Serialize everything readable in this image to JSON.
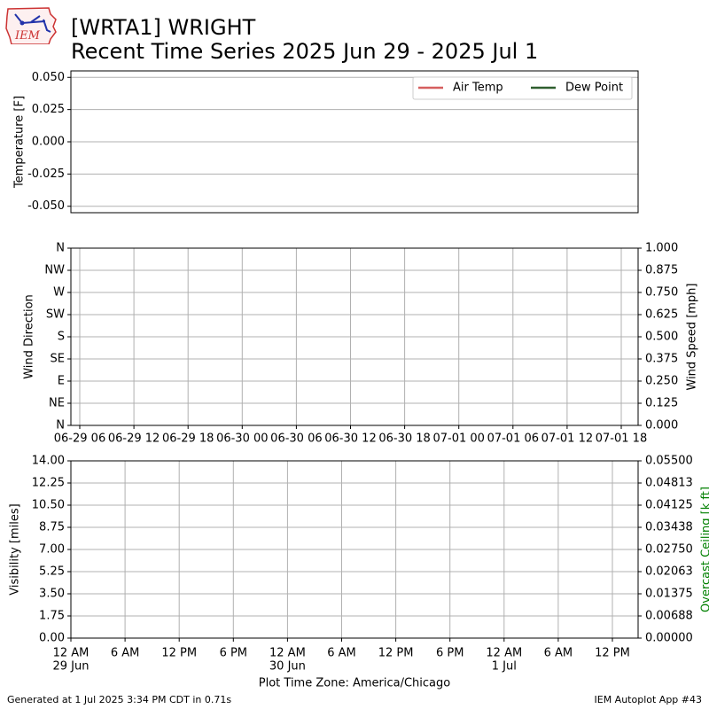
{
  "header": {
    "title_line1": "[WRTA1] WRIGHT",
    "title_line2": "Recent Time Series 2025 Jun 29 - 2025 Jul 1",
    "logo_text": "IEM"
  },
  "footer": {
    "generated": "Generated at 1 Jul 2025 3:34 PM CDT in 0.71s",
    "app": "IEM Autoplot App #43"
  },
  "colors": {
    "air_temp": "#d65f5f",
    "dew_point": "#2f5f2f",
    "ceiling_label": "#008000",
    "grid": "#b0b0b0"
  },
  "chart_data": [
    {
      "type": "line",
      "ylabel": "Temperature [F]",
      "ylim": [
        -0.055,
        0.055
      ],
      "yticks": [
        "0.050",
        "0.025",
        "0.000",
        "-0.025",
        "-0.050"
      ],
      "ytick_values": [
        0.05,
        0.025,
        0.0,
        -0.025,
        -0.05
      ],
      "grid": true,
      "legend": "top-right",
      "series": [
        {
          "name": "Air Temp",
          "values": []
        },
        {
          "name": "Dew Point",
          "values": []
        }
      ]
    },
    {
      "type": "scatter",
      "ylabel": "Wind Direction",
      "y2label": "Wind Speed [mph]",
      "ylim": [
        0,
        360
      ],
      "yticks": [
        "N",
        "NE",
        "E",
        "SE",
        "S",
        "SW",
        "W",
        "NW",
        "N"
      ],
      "y2lim": [
        0,
        1
      ],
      "y2ticks": [
        "0.000",
        "0.125",
        "0.250",
        "0.375",
        "0.500",
        "0.625",
        "0.750",
        "0.875",
        "1.000"
      ],
      "xticks": [
        "06-29 06",
        "06-29 12",
        "06-29 18",
        "06-30 00",
        "06-30 06",
        "06-30 12",
        "06-30 18",
        "07-01 00",
        "07-01 06",
        "07-01 12",
        "07-01 18"
      ],
      "grid": true,
      "series": []
    },
    {
      "type": "line",
      "ylabel": "Visibility [miles]",
      "y2label": "Overcast Ceiling [k ft]",
      "xlabel": "Plot Time Zone: America/Chicago",
      "ylim": [
        0,
        14
      ],
      "yticks": [
        "0.00",
        "1.75",
        "3.50",
        "5.25",
        "7.00",
        "8.75",
        "10.50",
        "12.25",
        "14.00"
      ],
      "y2lim": [
        0,
        0.055
      ],
      "y2ticks": [
        "0.00000",
        "0.00688",
        "0.01375",
        "0.02063",
        "0.02750",
        "0.03438",
        "0.04125",
        "0.04813",
        "0.05500"
      ],
      "xticks": [
        "12 AM",
        "6 AM",
        "12 PM",
        "6 PM",
        "12 AM",
        "6 AM",
        "12 PM",
        "6 PM",
        "12 AM",
        "6 AM",
        "12 PM"
      ],
      "xticks_sub": [
        "29 Jun",
        "",
        "",
        "",
        "30 Jun",
        "",
        "",
        "",
        "1 Jul",
        "",
        ""
      ],
      "grid": true,
      "series": []
    }
  ]
}
